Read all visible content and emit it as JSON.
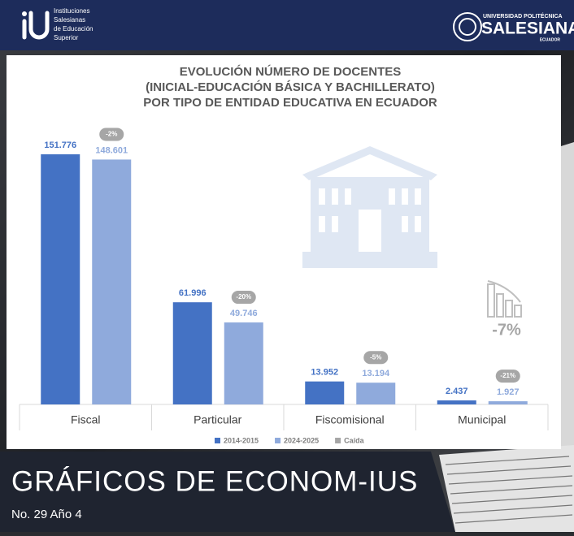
{
  "header": {
    "left_logo": [
      "Instituciones",
      "Salesianas",
      "de Educación",
      "Superior"
    ],
    "right_logo": {
      "top": "UNIVERSIDAD POLITÉCNICA",
      "name": "SALESIANA",
      "country": "ECUADOR"
    }
  },
  "chart_data": {
    "type": "bar",
    "title": [
      "EVOLUCIÓN NÚMERO DE DOCENTES",
      "(INICIAL-EDUCACIÓN BÁSICA Y BACHILLERATO)",
      "POR TIPO DE ENTIDAD EDUCATIVA EN ECUADOR"
    ],
    "categories": [
      "Fiscal",
      "Particular",
      "Fiscomisional",
      "Municipal"
    ],
    "series": [
      {
        "name": "2014-2015",
        "color": "#4472c4",
        "values": [
          151776,
          61996,
          13952,
          2437
        ],
        "value_labels": [
          "151.776",
          "61.996",
          "13.952",
          "2.437"
        ]
      },
      {
        "name": "2024-2025",
        "color": "#8faadc",
        "values": [
          148601,
          49746,
          13194,
          1927
        ],
        "value_labels": [
          "148.601",
          "49.746",
          "13.194",
          "1.927"
        ]
      }
    ],
    "change": {
      "name": "Caída",
      "color": "#a6a6a6",
      "values": [
        -2,
        -20,
        -5,
        -21
      ],
      "value_labels": [
        "-2%",
        "-20%",
        "-5%",
        "-21%"
      ]
    },
    "annotation": {
      "value": -7,
      "label": "-7%"
    }
  },
  "footer": {
    "title": "GRÁFICOS DE ECONOM-IUS",
    "issue": "No. 29 Año 4"
  }
}
